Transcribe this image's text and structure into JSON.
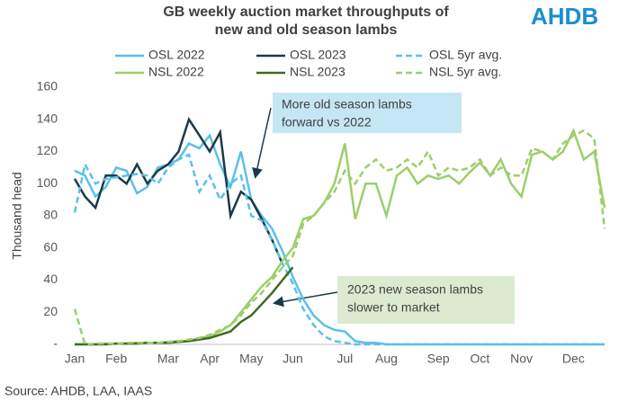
{
  "chart_data": {
    "type": "line",
    "title": [
      "GB weekly auction market throughputs of",
      "new and old season lambs"
    ],
    "logo": "AHDB",
    "source": "Source: AHDB, LAA, IAAS",
    "y_label": "Thousand head",
    "categories": [
      "Jan",
      null,
      null,
      null,
      "Feb",
      null,
      null,
      null,
      null,
      "Mar",
      null,
      null,
      null,
      "Apr",
      null,
      null,
      null,
      "May",
      null,
      null,
      null,
      "Jun",
      null,
      null,
      null,
      null,
      "Jul",
      null,
      null,
      null,
      "Aug",
      null,
      null,
      null,
      null,
      "Sep",
      null,
      null,
      null,
      "Oct",
      null,
      null,
      null,
      "Nov",
      null,
      null,
      null,
      null,
      "Dec",
      null,
      null,
      null
    ],
    "ylim": [
      0,
      160
    ],
    "yticks": [
      {
        "value": 0,
        "label": "-"
      },
      20,
      40,
      60,
      80,
      100,
      120,
      140,
      160
    ],
    "series": [
      {
        "name": "OSL 2022",
        "color": "#5bc0eb",
        "dash": false,
        "values": [
          108,
          105,
          92,
          98,
          110,
          108,
          94,
          98,
          110,
          112,
          115,
          125,
          122,
          130,
          112,
          98,
          120,
          90,
          80,
          72,
          58,
          42,
          28,
          18,
          12,
          9,
          8,
          2,
          1,
          1,
          0,
          0,
          0,
          0,
          0,
          0,
          0,
          0,
          0,
          0,
          0,
          0,
          0,
          0,
          0,
          0,
          0,
          0,
          0,
          0,
          0,
          0
        ]
      },
      {
        "name": "OSL 2023",
        "color": "#1b3a4b",
        "dash": false,
        "values": [
          103,
          92,
          85,
          105,
          105,
          100,
          112,
          100,
          108,
          112,
          120,
          140,
          130,
          120,
          132,
          80,
          95,
          90,
          78,
          65,
          50,
          null,
          null,
          null,
          null,
          null,
          null,
          null,
          null,
          null,
          null,
          null,
          null,
          null,
          null,
          null,
          null,
          null,
          null,
          null,
          null,
          null,
          null,
          null,
          null,
          null,
          null,
          null,
          null,
          null,
          null,
          null
        ]
      },
      {
        "name": "OSL 5yr avg.",
        "color": "#5bc0eb",
        "dash": true,
        "values": [
          82,
          112,
          100,
          103,
          104,
          105,
          106,
          105,
          100,
          110,
          115,
          118,
          95,
          105,
          90,
          100,
          105,
          80,
          77,
          65,
          50,
          38,
          22,
          12,
          5,
          2,
          1,
          0,
          0,
          0,
          0,
          0,
          0,
          0,
          0,
          0,
          0,
          0,
          0,
          0,
          0,
          0,
          0,
          0,
          0,
          0,
          0,
          0,
          0,
          0,
          0,
          0
        ]
      },
      {
        "name": "NSL 2022",
        "color": "#9bcf6b",
        "dash": false,
        "values": [
          0,
          0,
          0,
          0.5,
          0.5,
          0.5,
          1,
          1,
          1,
          1.5,
          2,
          2,
          4,
          5,
          8,
          12,
          20,
          28,
          36,
          42,
          52,
          60,
          78,
          80,
          88,
          100,
          125,
          78,
          100,
          100,
          80,
          105,
          110,
          100,
          105,
          103,
          105,
          100,
          107,
          113,
          105,
          115,
          100,
          92,
          118,
          120,
          115,
          120,
          133,
          115,
          120,
          85
        ]
      },
      {
        "name": "NSL 2023",
        "color": "#3d6b21",
        "dash": false,
        "values": [
          0,
          0,
          0,
          0,
          0.5,
          0.5,
          0.5,
          1,
          1,
          1,
          1.5,
          2,
          3,
          4,
          6,
          8,
          14,
          18,
          25,
          32,
          40,
          48,
          null,
          null,
          null,
          null,
          null,
          null,
          null,
          null,
          null,
          null,
          null,
          null,
          null,
          null,
          null,
          null,
          null,
          null,
          null,
          null,
          null,
          null,
          null,
          null,
          null,
          null,
          null,
          null,
          null,
          null
        ]
      },
      {
        "name": "NSL 5yr avg.",
        "color": "#9bcf6b",
        "dash": true,
        "values": [
          22,
          0,
          0.5,
          0.5,
          0.5,
          1,
          1,
          1,
          1,
          1.5,
          2,
          3,
          4,
          6,
          9,
          12,
          18,
          26,
          32,
          40,
          48,
          55,
          75,
          80,
          88,
          95,
          108,
          100,
          110,
          115,
          108,
          110,
          115,
          110,
          120,
          105,
          110,
          108,
          110,
          115,
          105,
          110,
          105,
          105,
          122,
          120,
          115,
          125,
          130,
          133,
          128,
          72
        ]
      }
    ],
    "annotations": [
      {
        "lines": [
          "More old season lambs",
          "forward vs 2022"
        ]
      },
      {
        "lines": [
          "2023 new season lambs",
          "slower to market"
        ]
      }
    ]
  }
}
